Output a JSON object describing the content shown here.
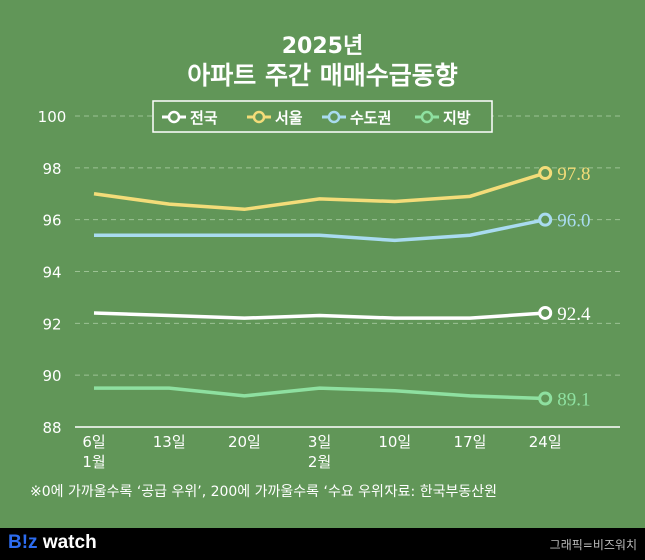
{
  "title_year": "2025년",
  "title": "아파트 주간 매매수급동향",
  "chart_data": {
    "type": "line",
    "categories": [
      [
        "6일",
        "1월"
      ],
      [
        "13일",
        ""
      ],
      [
        "20일",
        ""
      ],
      [
        "3일",
        "2월"
      ],
      [
        "10일",
        ""
      ],
      [
        "17일",
        ""
      ],
      [
        "24일",
        ""
      ]
    ],
    "ylim": [
      88,
      100
    ],
    "yticks": [
      88,
      90,
      92,
      94,
      96,
      98,
      100
    ],
    "grid": true,
    "legend_position": "top-center",
    "series": [
      {
        "name": "전국",
        "color": "#ffffff",
        "values": [
          92.4,
          92.3,
          92.2,
          92.3,
          92.2,
          92.2,
          92.4
        ],
        "end_label": "92.4"
      },
      {
        "name": "서울",
        "color": "#f3dc79",
        "values": [
          97.0,
          96.6,
          96.4,
          96.8,
          96.7,
          96.9,
          97.8
        ],
        "end_label": "97.8"
      },
      {
        "name": "수도권",
        "color": "#a9dbf0",
        "values": [
          95.4,
          95.4,
          95.4,
          95.4,
          95.2,
          95.4,
          96.0
        ],
        "end_label": "96.0"
      },
      {
        "name": "지방",
        "color": "#8ee0a0",
        "values": [
          89.5,
          89.5,
          89.2,
          89.5,
          89.4,
          89.2,
          89.1
        ],
        "end_label": "89.1"
      }
    ]
  },
  "note": "※0에 가까울수록 ‘공급 우위’, 200에 가까울수록 ‘수요 우위’",
  "source": "자료: 한국부동산원",
  "logo": {
    "b": "B!z",
    "rest": " watch"
  },
  "credit": "그래픽=비즈워치"
}
